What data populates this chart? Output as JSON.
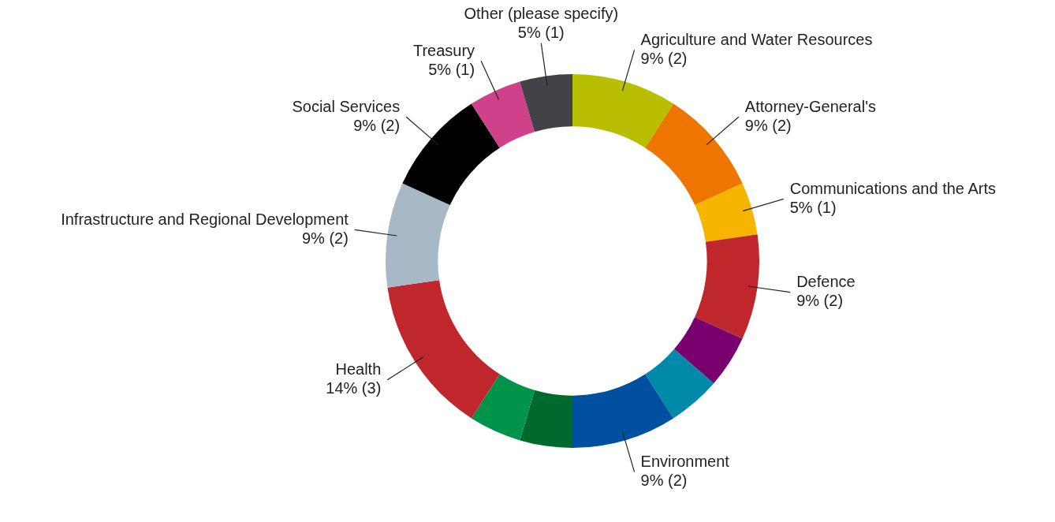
{
  "chart_data": {
    "type": "donut",
    "categories": [
      "Agriculture and Water Resources",
      "Attorney-General's",
      "Communications and the Arts",
      "Defence",
      null,
      null,
      "Environment",
      null,
      null,
      "Health",
      "Infrastructure and Regional Development",
      "Social Services",
      "Treasury",
      "Other (please specify)"
    ],
    "values": [
      2,
      2,
      1,
      2,
      1,
      1,
      2,
      1,
      1,
      3,
      2,
      2,
      1,
      1
    ],
    "value_labels": [
      "9% (2)",
      "9% (2)",
      "5% (1)",
      "9% (2)",
      null,
      null,
      "9% (2)",
      null,
      null,
      "14% (3)",
      "9% (2)",
      "9% (2)",
      "5% (1)",
      "5% (1)"
    ],
    "colors": [
      "#b9bf00",
      "#ee7600",
      "#f8b500",
      "#c0272d",
      "#7a0070",
      "#0089a8",
      "#0050a0",
      "#006a2c",
      "#00944a",
      "#c0272d",
      "#a7b9c6",
      "#000000",
      "#d0418b",
      "#434247"
    ],
    "legend": false
  }
}
